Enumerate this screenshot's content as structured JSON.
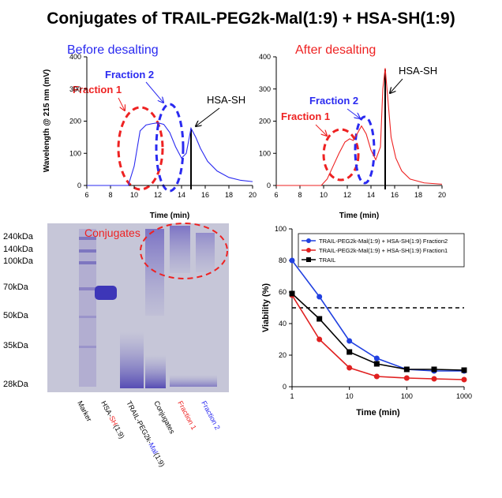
{
  "title": "Conjugates of TRAIL-PEG2k-Mal(1:9) + HSA-SH(1:9)",
  "chart_data": [
    {
      "type": "line",
      "title": "Before desalting",
      "xlabel": "Time (min)",
      "ylabel": "Wavelength @ 215 nm (mV)",
      "annotations": [
        "Fraction 1",
        "Fraction 2",
        "HSA-SH"
      ],
      "x": [
        6,
        9.5,
        10,
        10.5,
        11,
        11.5,
        12,
        12.5,
        13,
        13.5,
        14,
        14.4,
        14.8,
        15.2,
        15.6,
        16.2,
        17,
        18,
        19,
        20
      ],
      "series": [
        {
          "name": "Before desalting",
          "color": "#2a2af0",
          "values": [
            0,
            0,
            60,
            170,
            188,
            192,
            195,
            190,
            165,
            120,
            85,
            100,
            178,
            150,
            115,
            75,
            45,
            25,
            16,
            12
          ]
        }
      ],
      "xlim": [
        6,
        20
      ],
      "ylim": [
        0,
        400
      ],
      "xticks": [
        6,
        8,
        10,
        12,
        14,
        16,
        18,
        20
      ],
      "yticks": [
        0,
        100,
        200,
        300,
        400
      ]
    },
    {
      "type": "line",
      "title": "After desalting",
      "xlabel": "Time (min)",
      "annotations": [
        "Fraction 1",
        "Fraction 2",
        "HSA-SH"
      ],
      "x": [
        6,
        9.8,
        10.3,
        10.8,
        11.3,
        11.8,
        12.2,
        12.5,
        12.9,
        13.2,
        13.6,
        14,
        14.4,
        14.8,
        15,
        15.2,
        15.4,
        15.7,
        16.1,
        16.6,
        17.3,
        18.5,
        20
      ],
      "series": [
        {
          "name": "After desalting",
          "color": "#ee2222",
          "values": [
            0,
            0,
            20,
            60,
            100,
            135,
            145,
            140,
            165,
            185,
            160,
            110,
            80,
            120,
            300,
            365,
            280,
            150,
            85,
            45,
            20,
            8,
            4
          ]
        }
      ],
      "xlim": [
        6,
        20
      ],
      "ylim": [
        0,
        400
      ],
      "xticks": [
        6,
        8,
        10,
        12,
        14,
        16,
        18,
        20
      ],
      "yticks": [
        0,
        100,
        200,
        300,
        400
      ]
    },
    {
      "type": "line",
      "xlabel": "Time (min)",
      "ylabel": "Viability (%)",
      "xlog": true,
      "legend": "upper right",
      "hline": 50,
      "x": [
        1,
        3,
        10,
        30,
        100,
        300,
        1000
      ],
      "series": [
        {
          "name": "TRAIL-PEG2k-Mal(1:9) + HSA-SH(1:9) Fraction2",
          "color": "#2040e0",
          "marker": "circle",
          "values": [
            80,
            57,
            29,
            18,
            11,
            10,
            10
          ]
        },
        {
          "name": "TRAIL-PEG2k-Mal(1:9) + HSA-SH(1:9) Fraction1",
          "color": "#e02020",
          "marker": "circle",
          "values": [
            58,
            30,
            12,
            6.5,
            5.5,
            5,
            4.5
          ]
        },
        {
          "name": "TRAIL",
          "color": "#000000",
          "marker": "square",
          "values": [
            59,
            43,
            22,
            14.5,
            11,
            11,
            10.5
          ]
        }
      ],
      "xlim": [
        1,
        1000
      ],
      "ylim": [
        0,
        100
      ],
      "xticks": [
        1,
        10,
        100,
        1000
      ],
      "yticks": [
        0,
        20,
        40,
        60,
        80,
        100
      ]
    }
  ],
  "gel": {
    "markers": [
      "240kDa",
      "140kDa",
      "100kDa",
      "70kDa",
      "50kDa",
      "35kDa",
      "28kDa"
    ],
    "annotation": "Conjugates",
    "lanes": [
      "Marker",
      [
        "HSA-",
        "SH",
        "(1:9)"
      ],
      [
        "TRAIL-PEG2k-",
        "Mal",
        "(1:9)"
      ],
      "Conjugates",
      "Fraction 1",
      "Fraction 2"
    ]
  }
}
